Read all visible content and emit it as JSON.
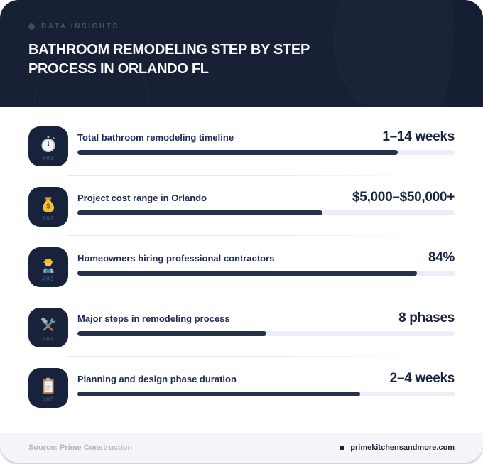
{
  "header": {
    "eyebrow": "DATA INSIGHTS",
    "title_line1": "BATHROOM REMODELING STEP BY STEP",
    "title_line2": "PROCESS IN ORLANDO FL"
  },
  "rows": [
    {
      "num": "#01",
      "icon": "stopwatch-icon",
      "label": "Total bathroom remodeling timeline",
      "value": "1–14 weeks",
      "percent": 85
    },
    {
      "num": "#02",
      "icon": "money-bag-icon",
      "label": "Project cost range in Orlando",
      "value": "$5,000–$50,000+",
      "percent": 65
    },
    {
      "num": "#03",
      "icon": "construction-worker-icon",
      "label": "Homeowners hiring professional contractors",
      "value": "84%",
      "percent": 90
    },
    {
      "num": "#04",
      "icon": "hammer-wrench-icon",
      "label": "Major steps in remodeling process",
      "value": "8 phases",
      "percent": 50
    },
    {
      "num": "#05",
      "icon": "clipboard-icon",
      "label": "Planning and design phase duration",
      "value": "2–4 weeks",
      "percent": 75
    }
  ],
  "footer": {
    "source": "Source: Prime Construction",
    "website": "primekitchensandmore.com"
  },
  "colors": {
    "header_bg": "#131c30",
    "tile_bg": "#18223a",
    "bar_fill": "#253247",
    "bar_track": "#eeecf7",
    "label_text": "#212b5a",
    "value_text": "#1a2540",
    "footer_bg": "#f5f5f9"
  }
}
